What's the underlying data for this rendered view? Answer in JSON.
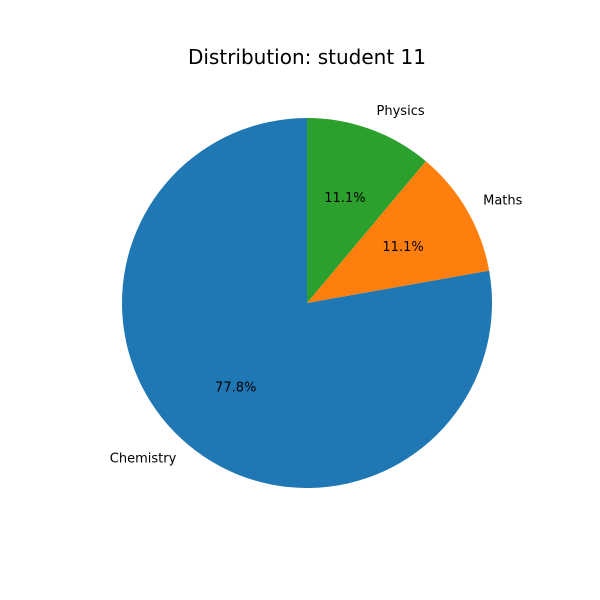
{
  "chart_data": {
    "type": "pie",
    "title": "Distribution: student 11",
    "start_angle_deg": 90,
    "direction": "counterclockwise",
    "slices": [
      {
        "label": "Chemistry",
        "value": 77.8,
        "pct_label": "77.8%",
        "color": "#1f77b4"
      },
      {
        "label": "Maths",
        "value": 11.1,
        "pct_label": "11.1%",
        "color": "#ff7f0e"
      },
      {
        "label": "Physics",
        "value": 11.1,
        "pct_label": "11.1%",
        "color": "#2ca02c"
      }
    ]
  }
}
